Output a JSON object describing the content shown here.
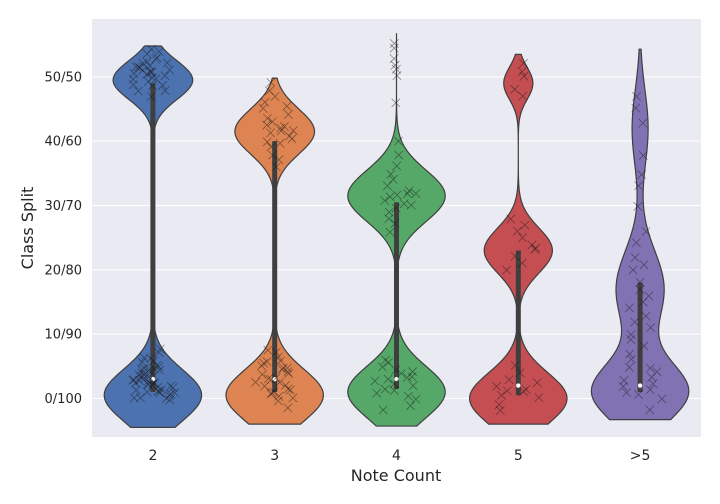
{
  "chart_data": {
    "type": "violin",
    "title": "",
    "xlabel": "Note Count",
    "ylabel": "Class Split",
    "categories": [
      "2",
      "3",
      "4",
      "5",
      ">5"
    ],
    "y_ticks": [
      {
        "label": "0/100",
        "value": 0.0
      },
      {
        "label": "10/90",
        "value": 0.1
      },
      {
        "label": "20/80",
        "value": 0.2
      },
      {
        "label": "30/70",
        "value": 0.3
      },
      {
        "label": "40/60",
        "value": 0.4
      },
      {
        "label": "50/50",
        "value": 0.5
      }
    ],
    "ylim": [
      -0.06,
      0.59
    ],
    "grid": true,
    "colors": [
      "#4c72b0",
      "#dd8452",
      "#55a868",
      "#c44e52",
      "#8172b3"
    ],
    "series": [
      {
        "category": "2",
        "modes": [
          [
            0.005,
            0.04,
            0.55
          ],
          [
            0.495,
            0.03,
            0.45
          ]
        ],
        "extent": [
          -0.045,
          0.548
        ],
        "iqr": [
          0.01,
          0.49
        ],
        "median": 0.03,
        "points": [
          0.0,
          0.0,
          0.005,
          0.01,
          0.01,
          0.015,
          0.02,
          0.02,
          0.025,
          0.03,
          0.03,
          0.035,
          0.04,
          0.045,
          0.05,
          0.055,
          0.06,
          0.008,
          0.012,
          0.018,
          0.022,
          0.028,
          0.033,
          0.038,
          0.042,
          0.048,
          0.002,
          0.006,
          0.014,
          0.026,
          0.036,
          0.044,
          0.052,
          0.003,
          0.016,
          0.024,
          0.031,
          0.047,
          0.058,
          0.064,
          0.07,
          0.075,
          0.009,
          0.019,
          0.029,
          0.039,
          0.49,
          0.5,
          0.5,
          0.505,
          0.51,
          0.515,
          0.52,
          0.485,
          0.48,
          0.495,
          0.502,
          0.508,
          0.512,
          0.518,
          0.525,
          0.53,
          0.535,
          0.498,
          0.503,
          0.513,
          0.522,
          0.492,
          0.488,
          0.507,
          0.517,
          0.527,
          0.54,
          0.545,
          0.478,
          0.47
        ]
      },
      {
        "category": "3",
        "modes": [
          [
            0.005,
            0.04,
            0.55
          ],
          [
            0.415,
            0.035,
            0.45
          ]
        ],
        "extent": [
          -0.04,
          0.498
        ],
        "iqr": [
          0.01,
          0.4
        ],
        "median": 0.03,
        "points": [
          0.0,
          0.005,
          0.01,
          0.015,
          0.02,
          0.025,
          0.03,
          0.035,
          0.04,
          0.045,
          0.05,
          0.055,
          0.06,
          0.065,
          0.008,
          0.018,
          0.028,
          0.038,
          0.048,
          0.003,
          0.013,
          0.023,
          0.033,
          0.043,
          0.053,
          -0.005,
          -0.015,
          0.07,
          0.075,
          0.38,
          0.39,
          0.4,
          0.405,
          0.41,
          0.415,
          0.42,
          0.425,
          0.43,
          0.44,
          0.45,
          0.455,
          0.46,
          0.47,
          0.395,
          0.412,
          0.418,
          0.422,
          0.435,
          0.37,
          0.36,
          0.48,
          0.49
        ]
      },
      {
        "category": "4",
        "modes": [
          [
            0.01,
            0.04,
            0.5
          ],
          [
            0.315,
            0.04,
            0.5
          ]
        ],
        "extent": [
          -0.043,
          0.568
        ],
        "iqr": [
          0.015,
          0.305
        ],
        "median": 0.03,
        "points": [
          0.0,
          0.005,
          0.01,
          0.015,
          0.02,
          0.025,
          0.03,
          0.035,
          0.04,
          0.045,
          0.05,
          0.055,
          0.06,
          -0.01,
          -0.02,
          0.012,
          0.022,
          0.032,
          0.042,
          0.28,
          0.29,
          0.3,
          0.305,
          0.31,
          0.315,
          0.32,
          0.325,
          0.33,
          0.34,
          0.35,
          0.36,
          0.27,
          0.26,
          0.298,
          0.312,
          0.318,
          0.5,
          0.51,
          0.52,
          0.53,
          0.55,
          0.545,
          0.46,
          0.4,
          0.38
        ]
      },
      {
        "category": "5",
        "modes": [
          [
            0.0,
            0.04,
            0.5
          ],
          [
            0.23,
            0.035,
            0.35
          ],
          [
            0.49,
            0.025,
            0.15
          ]
        ],
        "extent": [
          -0.04,
          0.535
        ],
        "iqr": [
          0.005,
          0.23
        ],
        "median": 0.02,
        "points": [
          0.0,
          0.005,
          0.01,
          0.015,
          0.02,
          0.025,
          0.03,
          0.04,
          0.05,
          -0.01,
          -0.02,
          0.012,
          0.22,
          0.23,
          0.24,
          0.25,
          0.26,
          0.21,
          0.2,
          0.235,
          0.27,
          0.28,
          0.5,
          0.51,
          0.52,
          0.48,
          0.47
        ]
      },
      {
        "category": ">5",
        "modes": [
          [
            0.01,
            0.045,
            0.6
          ],
          [
            0.17,
            0.06,
            0.3
          ],
          [
            0.42,
            0.06,
            0.1
          ]
        ],
        "extent": [
          -0.033,
          0.543
        ],
        "iqr": [
          0.01,
          0.18
        ],
        "median": 0.02,
        "points": [
          0.0,
          0.005,
          0.01,
          0.02,
          0.03,
          0.04,
          0.05,
          0.06,
          0.07,
          0.08,
          0.1,
          0.12,
          0.13,
          0.14,
          0.15,
          0.16,
          0.17,
          0.18,
          0.2,
          0.21,
          0.22,
          0.24,
          0.26,
          0.3,
          0.33,
          0.35,
          0.38,
          0.43,
          0.45,
          0.47,
          -0.02,
          0.015,
          0.025,
          0.035,
          0.045,
          0.11,
          0.09
        ]
      }
    ]
  }
}
